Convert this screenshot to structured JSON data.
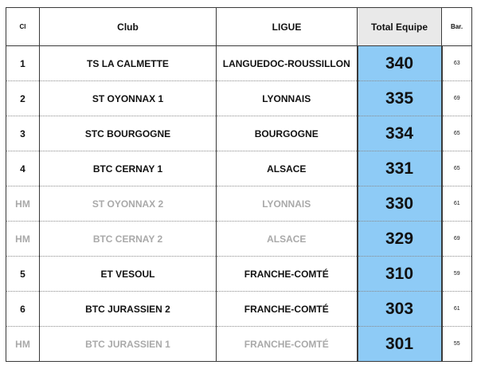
{
  "headers": {
    "cl": "Cl",
    "club": "Club",
    "ligue": "LIGUE",
    "total": "Total Equipe",
    "bar": "Bar."
  },
  "colors": {
    "total_bg": "#8ecbf6",
    "hm_text": "#a9a9a9",
    "header_total_bg": "#e9e9e9"
  },
  "rows": [
    {
      "rank": "1",
      "club": "TS LA CALMETTE",
      "ligue": "LANGUEDOC-ROUSSILLON",
      "total": "340",
      "bar": "63",
      "hm": false
    },
    {
      "rank": "2",
      "club": "ST OYONNAX 1",
      "ligue": "LYONNAIS",
      "total": "335",
      "bar": "69",
      "hm": false
    },
    {
      "rank": "3",
      "club": "STC BOURGOGNE",
      "ligue": "BOURGOGNE",
      "total": "334",
      "bar": "65",
      "hm": false
    },
    {
      "rank": "4",
      "club": "BTC CERNAY 1",
      "ligue": "ALSACE",
      "total": "331",
      "bar": "65",
      "hm": false
    },
    {
      "rank": "HM",
      "club": "ST OYONNAX 2",
      "ligue": "LYONNAIS",
      "total": "330",
      "bar": "61",
      "hm": true
    },
    {
      "rank": "HM",
      "club": "BTC CERNAY 2",
      "ligue": "ALSACE",
      "total": "329",
      "bar": "69",
      "hm": true
    },
    {
      "rank": "5",
      "club": "ET VESOUL",
      "ligue": "FRANCHE-COMTÉ",
      "total": "310",
      "bar": "59",
      "hm": false
    },
    {
      "rank": "6",
      "club": "BTC JURASSIEN 2",
      "ligue": "FRANCHE-COMTÉ",
      "total": "303",
      "bar": "61",
      "hm": false
    },
    {
      "rank": "HM",
      "club": "BTC JURASSIEN 1",
      "ligue": "FRANCHE-COMTÉ",
      "total": "301",
      "bar": "55",
      "hm": true
    }
  ]
}
